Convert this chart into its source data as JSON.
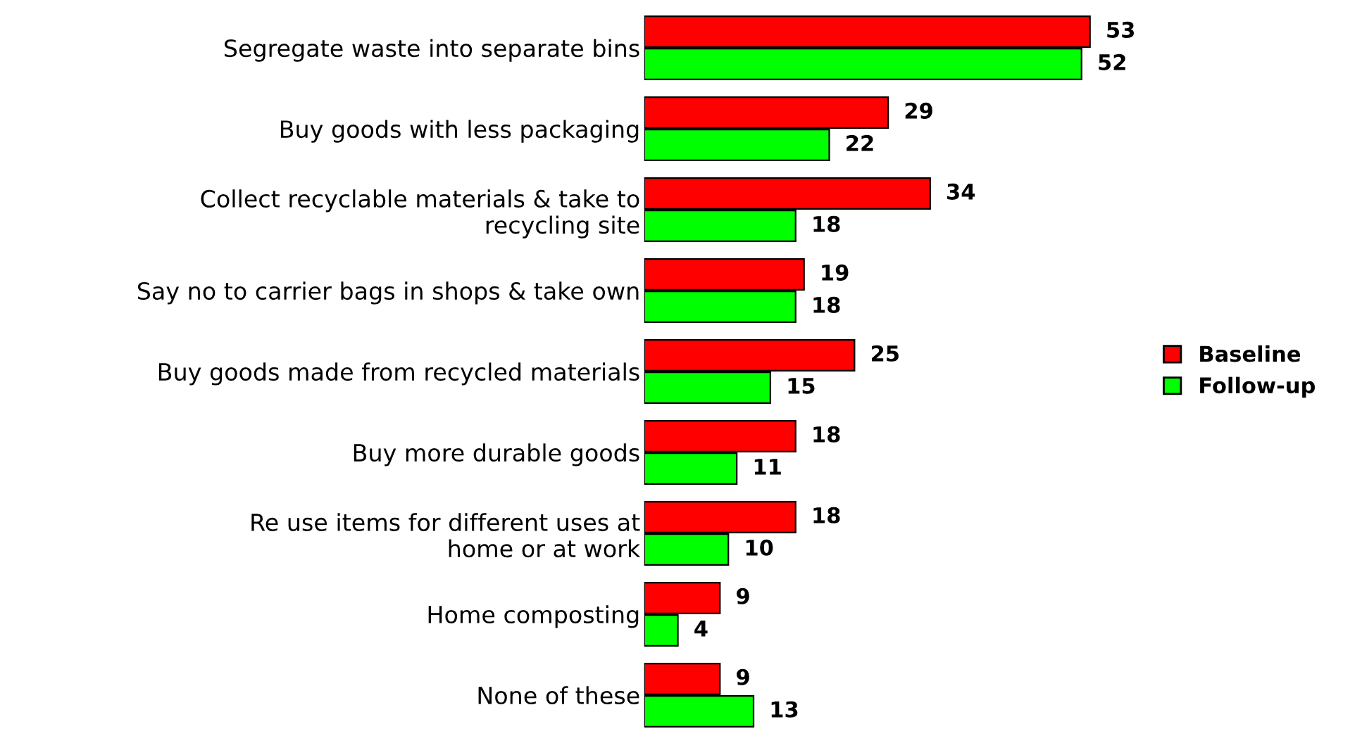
{
  "chart_data": {
    "type": "bar",
    "orientation": "horizontal",
    "categories": [
      "Segregate waste into separate bins",
      "Buy goods with less packaging",
      "Collect recyclable materials & take to\nrecycling site",
      "Say no to carrier bags in shops & take own",
      "Buy goods made from recycled materials",
      "Buy more durable goods",
      "Re use items for different uses at\nhome or at work",
      "Home composting",
      "None of these"
    ],
    "series": [
      {
        "name": "Baseline",
        "color": "#ff0000",
        "values": [
          53,
          29,
          34,
          19,
          25,
          18,
          18,
          9,
          9
        ]
      },
      {
        "name": "Follow-up",
        "color": "#00ff00",
        "values": [
          52,
          22,
          18,
          18,
          15,
          11,
          10,
          4,
          13
        ]
      }
    ],
    "data_labels": true,
    "legend": "right",
    "grid": false
  }
}
